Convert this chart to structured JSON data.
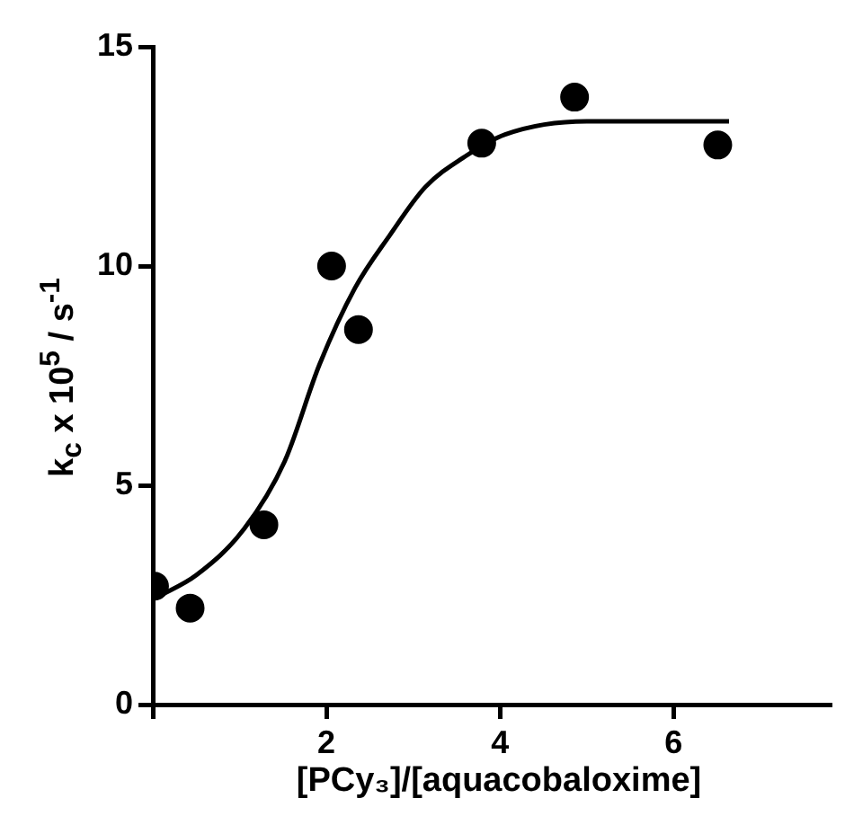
{
  "chart_data": {
    "type": "scatter",
    "xlabel": "[PCy₃]/[aquacobaloxime]",
    "ylabel": "k$_{c}$ x 10$^{5}$  / s$^{-1}$",
    "xlim": [
      0,
      7.8
    ],
    "xticks": [
      {
        "value": 0,
        "label": null
      },
      2,
      4,
      6
    ],
    "ylim": [
      0,
      15
    ],
    "yticks": [
      0,
      5,
      10,
      15
    ],
    "grid": false,
    "legend": false,
    "series": [
      {
        "color": "#000000",
        "marker": "circle",
        "x": [
          0.02,
          0.43,
          1.28,
          2.06,
          2.37,
          3.79,
          4.86,
          6.51
        ],
        "values": [
          2.7,
          2.2,
          4.1,
          10.0,
          8.55,
          12.8,
          13.85,
          12.76
        ]
      },
      {
        "type": "line",
        "color": "#000000",
        "marker": "none",
        "line_style": "solid",
        "x": [
          0.05,
          0.5,
          1.05,
          1.52,
          1.92,
          2.33,
          2.73,
          3.14,
          3.6,
          4.06,
          5.0,
          6.64
        ],
        "values": [
          2.45,
          2.95,
          4.0,
          5.55,
          7.75,
          9.5,
          10.7,
          11.8,
          12.5,
          13.0,
          13.3,
          13.3
        ]
      }
    ]
  }
}
